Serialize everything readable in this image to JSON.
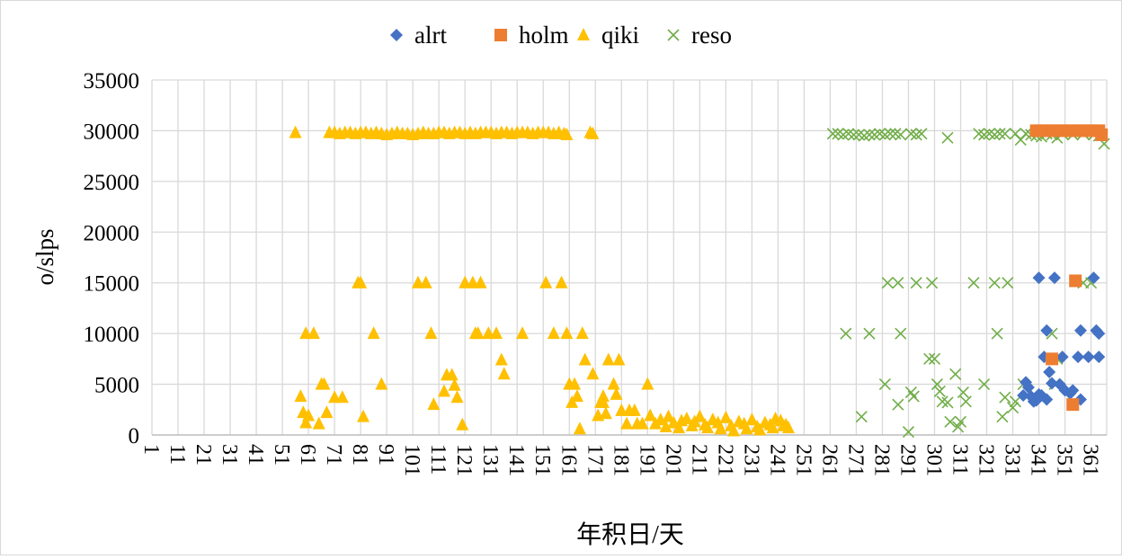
{
  "chart_data": {
    "type": "scatter",
    "title": "",
    "xlabel": "年积日/天",
    "ylabel": "o/slps",
    "xlim": [
      1,
      367
    ],
    "ylim": [
      0,
      35000
    ],
    "x_ticks": [
      1,
      11,
      21,
      31,
      41,
      51,
      61,
      71,
      81,
      91,
      101,
      111,
      121,
      131,
      141,
      151,
      161,
      171,
      181,
      191,
      201,
      211,
      221,
      231,
      241,
      251,
      261,
      271,
      281,
      291,
      301,
      311,
      321,
      331,
      341,
      351,
      361
    ],
    "y_ticks": [
      0,
      5000,
      10000,
      15000,
      20000,
      25000,
      30000,
      35000
    ],
    "grid": true,
    "legend_position": "top",
    "series": [
      {
        "name": "alrt",
        "marker": "diamond",
        "color": "#4472C4",
        "points": [
          [
            341,
            15500
          ],
          [
            347,
            15500
          ],
          [
            362,
            15500
          ],
          [
            344,
            10300
          ],
          [
            357,
            10300
          ],
          [
            363,
            10300
          ],
          [
            364,
            10000
          ],
          [
            343,
            7700
          ],
          [
            350,
            7700
          ],
          [
            356,
            7700
          ],
          [
            360,
            7700
          ],
          [
            364,
            7700
          ],
          [
            345,
            6200
          ],
          [
            335,
            3900
          ],
          [
            337,
            4700
          ],
          [
            338,
            3800
          ],
          [
            339,
            3300
          ],
          [
            341,
            4000
          ],
          [
            344,
            3500
          ],
          [
            346,
            5100
          ],
          [
            349,
            5000
          ],
          [
            351,
            4400
          ],
          [
            353,
            4100
          ],
          [
            354,
            4400
          ],
          [
            357,
            3500
          ],
          [
            336,
            5200
          ],
          [
            340,
            3400
          ],
          [
            342,
            3900
          ]
        ]
      },
      {
        "name": "holm",
        "marker": "square",
        "color": "#ED7D31",
        "points": [
          [
            340,
            30000
          ],
          [
            342,
            30000
          ],
          [
            344,
            30000
          ],
          [
            346,
            30000
          ],
          [
            348,
            30000
          ],
          [
            350,
            30000
          ],
          [
            352,
            30000
          ],
          [
            354,
            30000
          ],
          [
            356,
            30000
          ],
          [
            358,
            30000
          ],
          [
            360,
            30000
          ],
          [
            362,
            30000
          ],
          [
            364,
            30000
          ],
          [
            365,
            29600
          ],
          [
            355,
            15200
          ],
          [
            346,
            7500
          ],
          [
            354,
            3000
          ]
        ]
      },
      {
        "name": "qiki",
        "marker": "triangle",
        "color": "#FFC000",
        "points": [
          [
            56,
            29800
          ],
          [
            69,
            29800
          ],
          [
            71,
            29800
          ],
          [
            73,
            29700
          ],
          [
            75,
            29800
          ],
          [
            77,
            29800
          ],
          [
            79,
            29700
          ],
          [
            81,
            29800
          ],
          [
            83,
            29800
          ],
          [
            85,
            29700
          ],
          [
            87,
            29800
          ],
          [
            89,
            29700
          ],
          [
            91,
            29600
          ],
          [
            93,
            29700
          ],
          [
            95,
            29800
          ],
          [
            97,
            29700
          ],
          [
            99,
            29700
          ],
          [
            101,
            29600
          ],
          [
            103,
            29700
          ],
          [
            105,
            29800
          ],
          [
            107,
            29700
          ],
          [
            109,
            29700
          ],
          [
            111,
            29800
          ],
          [
            113,
            29800
          ],
          [
            115,
            29700
          ],
          [
            117,
            29800
          ],
          [
            119,
            29800
          ],
          [
            121,
            29700
          ],
          [
            123,
            29800
          ],
          [
            125,
            29700
          ],
          [
            127,
            29800
          ],
          [
            129,
            29800
          ],
          [
            131,
            29800
          ],
          [
            133,
            29700
          ],
          [
            135,
            29800
          ],
          [
            137,
            29800
          ],
          [
            139,
            29700
          ],
          [
            141,
            29800
          ],
          [
            143,
            29800
          ],
          [
            145,
            29800
          ],
          [
            147,
            29700
          ],
          [
            149,
            29800
          ],
          [
            151,
            29800
          ],
          [
            153,
            29800
          ],
          [
            155,
            29700
          ],
          [
            157,
            29800
          ],
          [
            159,
            29700
          ],
          [
            160,
            29600
          ],
          [
            169,
            29800
          ],
          [
            170,
            29700
          ],
          [
            58,
            3800
          ],
          [
            59,
            2200
          ],
          [
            60,
            1200
          ],
          [
            61,
            1900
          ],
          [
            65,
            1100
          ],
          [
            60,
            10000
          ],
          [
            63,
            10000
          ],
          [
            66,
            5000
          ],
          [
            67,
            5000
          ],
          [
            68,
            2200
          ],
          [
            71,
            3700
          ],
          [
            74,
            3700
          ],
          [
            80,
            15000
          ],
          [
            81,
            15000
          ],
          [
            82,
            1800
          ],
          [
            86,
            10000
          ],
          [
            89,
            5000
          ],
          [
            103,
            15000
          ],
          [
            106,
            15000
          ],
          [
            108,
            10000
          ],
          [
            109,
            3000
          ],
          [
            113,
            4300
          ],
          [
            114,
            5900
          ],
          [
            116,
            5900
          ],
          [
            117,
            4900
          ],
          [
            118,
            3700
          ],
          [
            120,
            1000
          ],
          [
            121,
            15000
          ],
          [
            124,
            15000
          ],
          [
            127,
            15000
          ],
          [
            125,
            10000
          ],
          [
            126,
            10000
          ],
          [
            130,
            10000
          ],
          [
            133,
            10000
          ],
          [
            135,
            7400
          ],
          [
            136,
            6000
          ],
          [
            143,
            10000
          ],
          [
            152,
            15000
          ],
          [
            155,
            10000
          ],
          [
            158,
            15000
          ],
          [
            160,
            10000
          ],
          [
            161,
            5000
          ],
          [
            163,
            5000
          ],
          [
            162,
            3200
          ],
          [
            164,
            3800
          ],
          [
            165,
            600
          ],
          [
            166,
            10000
          ],
          [
            167,
            7400
          ],
          [
            170,
            6000
          ],
          [
            172,
            1900
          ],
          [
            173,
            3200
          ],
          [
            174,
            3200
          ],
          [
            175,
            2100
          ],
          [
            176,
            7400
          ],
          [
            178,
            5000
          ],
          [
            179,
            4000
          ],
          [
            174,
            3800
          ],
          [
            180,
            7400
          ],
          [
            181,
            2400
          ],
          [
            183,
            1100
          ],
          [
            184,
            2400
          ],
          [
            186,
            2400
          ],
          [
            187,
            1100
          ],
          [
            189,
            1100
          ],
          [
            191,
            5000
          ],
          [
            192,
            1900
          ],
          [
            194,
            1100
          ],
          [
            196,
            1500
          ],
          [
            198,
            800
          ],
          [
            199,
            1800
          ],
          [
            201,
            1200
          ],
          [
            203,
            700
          ],
          [
            204,
            1400
          ],
          [
            206,
            1600
          ],
          [
            208,
            900
          ],
          [
            209,
            1300
          ],
          [
            211,
            1800
          ],
          [
            213,
            1000
          ],
          [
            214,
            700
          ],
          [
            216,
            1500
          ],
          [
            218,
            1200
          ],
          [
            219,
            600
          ],
          [
            221,
            1700
          ],
          [
            223,
            900
          ],
          [
            224,
            400
          ],
          [
            226,
            1300
          ],
          [
            228,
            1100
          ],
          [
            229,
            600
          ],
          [
            231,
            1500
          ],
          [
            233,
            800
          ],
          [
            234,
            500
          ],
          [
            236,
            1200
          ],
          [
            238,
            1000
          ],
          [
            239,
            700
          ],
          [
            240,
            1600
          ],
          [
            242,
            1400
          ],
          [
            243,
            900
          ],
          [
            245,
            700
          ],
          [
            244,
            1000
          ]
        ]
      },
      {
        "name": "reso",
        "marker": "x",
        "color": "#70AD47",
        "points": [
          [
            262,
            29700
          ],
          [
            264,
            29700
          ],
          [
            266,
            29600
          ],
          [
            268,
            29700
          ],
          [
            270,
            29600
          ],
          [
            272,
            29600
          ],
          [
            274,
            29500
          ],
          [
            276,
            29600
          ],
          [
            278,
            29600
          ],
          [
            280,
            29700
          ],
          [
            282,
            29600
          ],
          [
            284,
            29700
          ],
          [
            286,
            29700
          ],
          [
            288,
            29600
          ],
          [
            292,
            29700
          ],
          [
            294,
            29600
          ],
          [
            296,
            29700
          ],
          [
            306,
            29300
          ],
          [
            318,
            29700
          ],
          [
            320,
            29600
          ],
          [
            322,
            29700
          ],
          [
            324,
            29600
          ],
          [
            326,
            29700
          ],
          [
            328,
            29700
          ],
          [
            332,
            29700
          ],
          [
            334,
            29100
          ],
          [
            336,
            29700
          ],
          [
            338,
            29600
          ],
          [
            340,
            29500
          ],
          [
            342,
            29400
          ],
          [
            344,
            29700
          ],
          [
            346,
            29600
          ],
          [
            348,
            29300
          ],
          [
            350,
            29700
          ],
          [
            354,
            29600
          ],
          [
            358,
            29700
          ],
          [
            362,
            29600
          ],
          [
            364,
            29500
          ],
          [
            366,
            28700
          ],
          [
            283,
            15000
          ],
          [
            287,
            15000
          ],
          [
            294,
            15000
          ],
          [
            300,
            15000
          ],
          [
            316,
            15000
          ],
          [
            324,
            15000
          ],
          [
            329,
            15000
          ],
          [
            358,
            15000
          ],
          [
            361,
            15000
          ],
          [
            267,
            10000
          ],
          [
            276,
            10000
          ],
          [
            288,
            10000
          ],
          [
            325,
            10000
          ],
          [
            346,
            10000
          ],
          [
            299,
            7500
          ],
          [
            301,
            7500
          ],
          [
            348,
            7500
          ],
          [
            273,
            1800
          ],
          [
            282,
            5000
          ],
          [
            287,
            3000
          ],
          [
            292,
            4200
          ],
          [
            293,
            3800
          ],
          [
            291,
            300
          ],
          [
            302,
            5000
          ],
          [
            303,
            4300
          ],
          [
            304,
            3300
          ],
          [
            306,
            3200
          ],
          [
            307,
            1300
          ],
          [
            309,
            6000
          ],
          [
            310,
            800
          ],
          [
            311,
            1300
          ],
          [
            312,
            4200
          ],
          [
            313,
            3300
          ],
          [
            320,
            5000
          ],
          [
            327,
            1800
          ],
          [
            328,
            3700
          ],
          [
            331,
            2700
          ],
          [
            332,
            3300
          ],
          [
            335,
            5000
          ],
          [
            347,
            5000
          ]
        ]
      }
    ]
  }
}
